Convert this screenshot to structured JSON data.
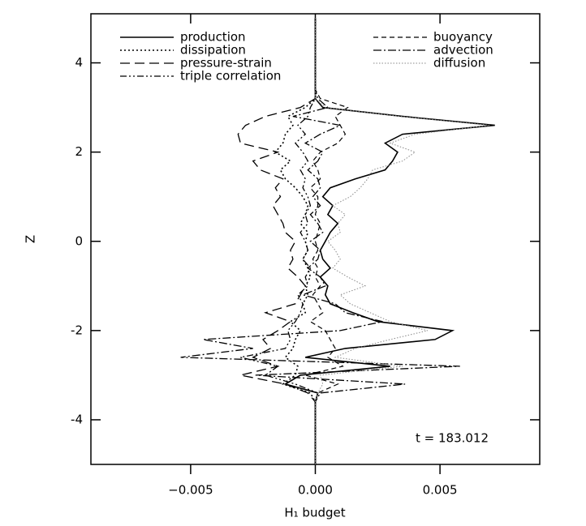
{
  "chart_data": {
    "type": "line",
    "xlabel": "H₁ budget",
    "ylabel": "Z",
    "annotation": "t = 183.012",
    "xlim": [
      -0.009,
      0.009
    ],
    "ylim": [
      -5,
      5.1
    ],
    "xticks": [
      {
        "value": -0.005,
        "label": "−0.005"
      },
      {
        "value": 0,
        "label": "0.000"
      },
      {
        "value": 0.005,
        "label": "0.005"
      }
    ],
    "yticks": [
      -4,
      -2,
      0,
      2,
      4
    ],
    "z": [
      -5,
      -4,
      -3.6,
      -3.4,
      -3.2,
      -3.0,
      -2.8,
      -2.6,
      -2.4,
      -2.2,
      -2.0,
      -1.8,
      -1.6,
      -1.4,
      -1.2,
      -1.0,
      -0.8,
      -0.6,
      -0.4,
      -0.2,
      0,
      0.2,
      0.4,
      0.6,
      0.8,
      1.0,
      1.2,
      1.4,
      1.6,
      1.8,
      2.0,
      2.2,
      2.4,
      2.6,
      2.8,
      3.0,
      3.2,
      3.4,
      3.6,
      4,
      5
    ],
    "series": [
      {
        "name": "production",
        "color": "#000000",
        "values": [
          0,
          0,
          0,
          0.0001,
          -0.0012,
          -0.0006,
          0.003,
          -0.0004,
          0.0012,
          0.0048,
          0.0055,
          0.0025,
          0.0015,
          0.0006,
          0.0004,
          0.0005,
          0.0002,
          0.0006,
          0.0003,
          0.0002,
          0.0004,
          0.0006,
          0.0009,
          0.0005,
          0.0007,
          0.0003,
          0.0006,
          0.0016,
          0.0028,
          0.0031,
          0.0033,
          0.0028,
          0.0035,
          0.0072,
          0.0035,
          0.0003,
          0,
          0,
          0,
          0,
          0
        ]
      },
      {
        "name": "dissipation",
        "color": "#000000",
        "values": [
          0,
          0,
          0,
          -0.0002,
          -0.0013,
          -0.0008,
          -0.0007,
          -0.0012,
          -0.0009,
          -0.0008,
          -0.0006,
          -0.001,
          -0.0004,
          -0.0005,
          -0.0003,
          -0.0004,
          -0.0002,
          -0.0003,
          -0.0005,
          -0.0003,
          -0.0004,
          -0.0003,
          -0.0006,
          -0.0004,
          -0.0003,
          -0.0005,
          -0.0008,
          -0.0012,
          -0.0014,
          -0.001,
          -0.0016,
          -0.0013,
          -0.0012,
          -0.0009,
          -0.0011,
          -0.0004,
          0,
          0,
          0,
          0,
          0
        ]
      },
      {
        "name": "pressure-strain",
        "color": "#000000",
        "values": [
          0,
          0,
          0,
          -0.0003,
          -0.0012,
          -0.003,
          -0.0015,
          -0.0025,
          -0.0018,
          -0.0021,
          -0.0015,
          -0.001,
          -0.002,
          -0.0008,
          -0.0006,
          -0.0004,
          -0.0007,
          -0.0011,
          -0.0009,
          -0.001,
          -0.0008,
          -0.0012,
          -0.0013,
          -0.0015,
          -0.0017,
          -0.0014,
          -0.0016,
          -0.0013,
          -0.0022,
          -0.0025,
          -0.0015,
          -0.003,
          -0.0031,
          -0.0028,
          -0.002,
          -0.0006,
          0,
          0,
          0,
          0,
          0
        ]
      },
      {
        "name": "triple correlation",
        "color": "#000000",
        "values": [
          0,
          0,
          0,
          0.0001,
          -0.0008,
          -0.002,
          -0.0015,
          -0.003,
          -0.0012,
          -0.001,
          -0.0011,
          -0.0008,
          -0.0006,
          -0.0005,
          -0.0007,
          -0.0003,
          -0.0004,
          -0.0002,
          -0.0005,
          -0.0003,
          -0.0004,
          -0.0006,
          -0.0003,
          -0.0004,
          -0.0002,
          -0.0003,
          -0.0005,
          -0.0004,
          -0.0006,
          -0.0003,
          -0.0005,
          -0.0008,
          -0.0004,
          -0.0007,
          -0.0003,
          -0.0002,
          0,
          0,
          0,
          0,
          0
        ]
      },
      {
        "name": "buoyancy",
        "color": "#000000",
        "values": [
          0,
          0,
          0,
          0.0001,
          0.0009,
          -0.0004,
          0.0011,
          0.0005,
          0.0008,
          0.0006,
          0.0004,
          -0.0002,
          0.0003,
          0.0001,
          -0.0001,
          0.0002,
          0,
          0.0001,
          -0.0001,
          0.0001,
          0,
          0.0001,
          0.0002,
          0,
          0.0001,
          0.0001,
          -0.0002,
          0.0002,
          0.0001,
          -0.0001,
          0.0002,
          0.0009,
          0.0012,
          0.001,
          0.0008,
          0.0013,
          0.0002,
          0,
          0,
          0,
          0
        ]
      },
      {
        "name": "advection",
        "color": "#000000",
        "values": [
          0,
          0,
          0,
          0.0002,
          0.0036,
          -0.0024,
          0.0058,
          -0.0054,
          -0.0025,
          -0.0045,
          0.001,
          0.0027,
          0.0012,
          0.0008,
          -0.0005,
          0.0004,
          0.0002,
          -0.0003,
          0.0001,
          0.0002,
          -0.0002,
          0.0003,
          0.0001,
          -0.0002,
          0.0002,
          -0.0001,
          0.0002,
          0.0001,
          -0.0003,
          0.0001,
          0.0003,
          -0.0004,
          0.0002,
          0.001,
          -0.0009,
          0.0005,
          0.0001,
          0,
          0,
          0,
          0
        ]
      },
      {
        "name": "diffusion",
        "color": "#888888",
        "values": [
          0,
          0,
          0,
          0.0001,
          0.0003,
          0.0002,
          0.0035,
          0.0008,
          0.0016,
          0.003,
          0.0045,
          0.003,
          0.0022,
          0.0014,
          0.001,
          0.002,
          0.0013,
          0.0007,
          0.001,
          0.0008,
          0.0005,
          0.001,
          0.0009,
          0.0012,
          0.0007,
          0.0014,
          0.0018,
          0.0021,
          0.0023,
          0.0035,
          0.004,
          0.003,
          0.004,
          0.007,
          0.0034,
          0.0004,
          0,
          0,
          0,
          0,
          0
        ]
      }
    ]
  }
}
